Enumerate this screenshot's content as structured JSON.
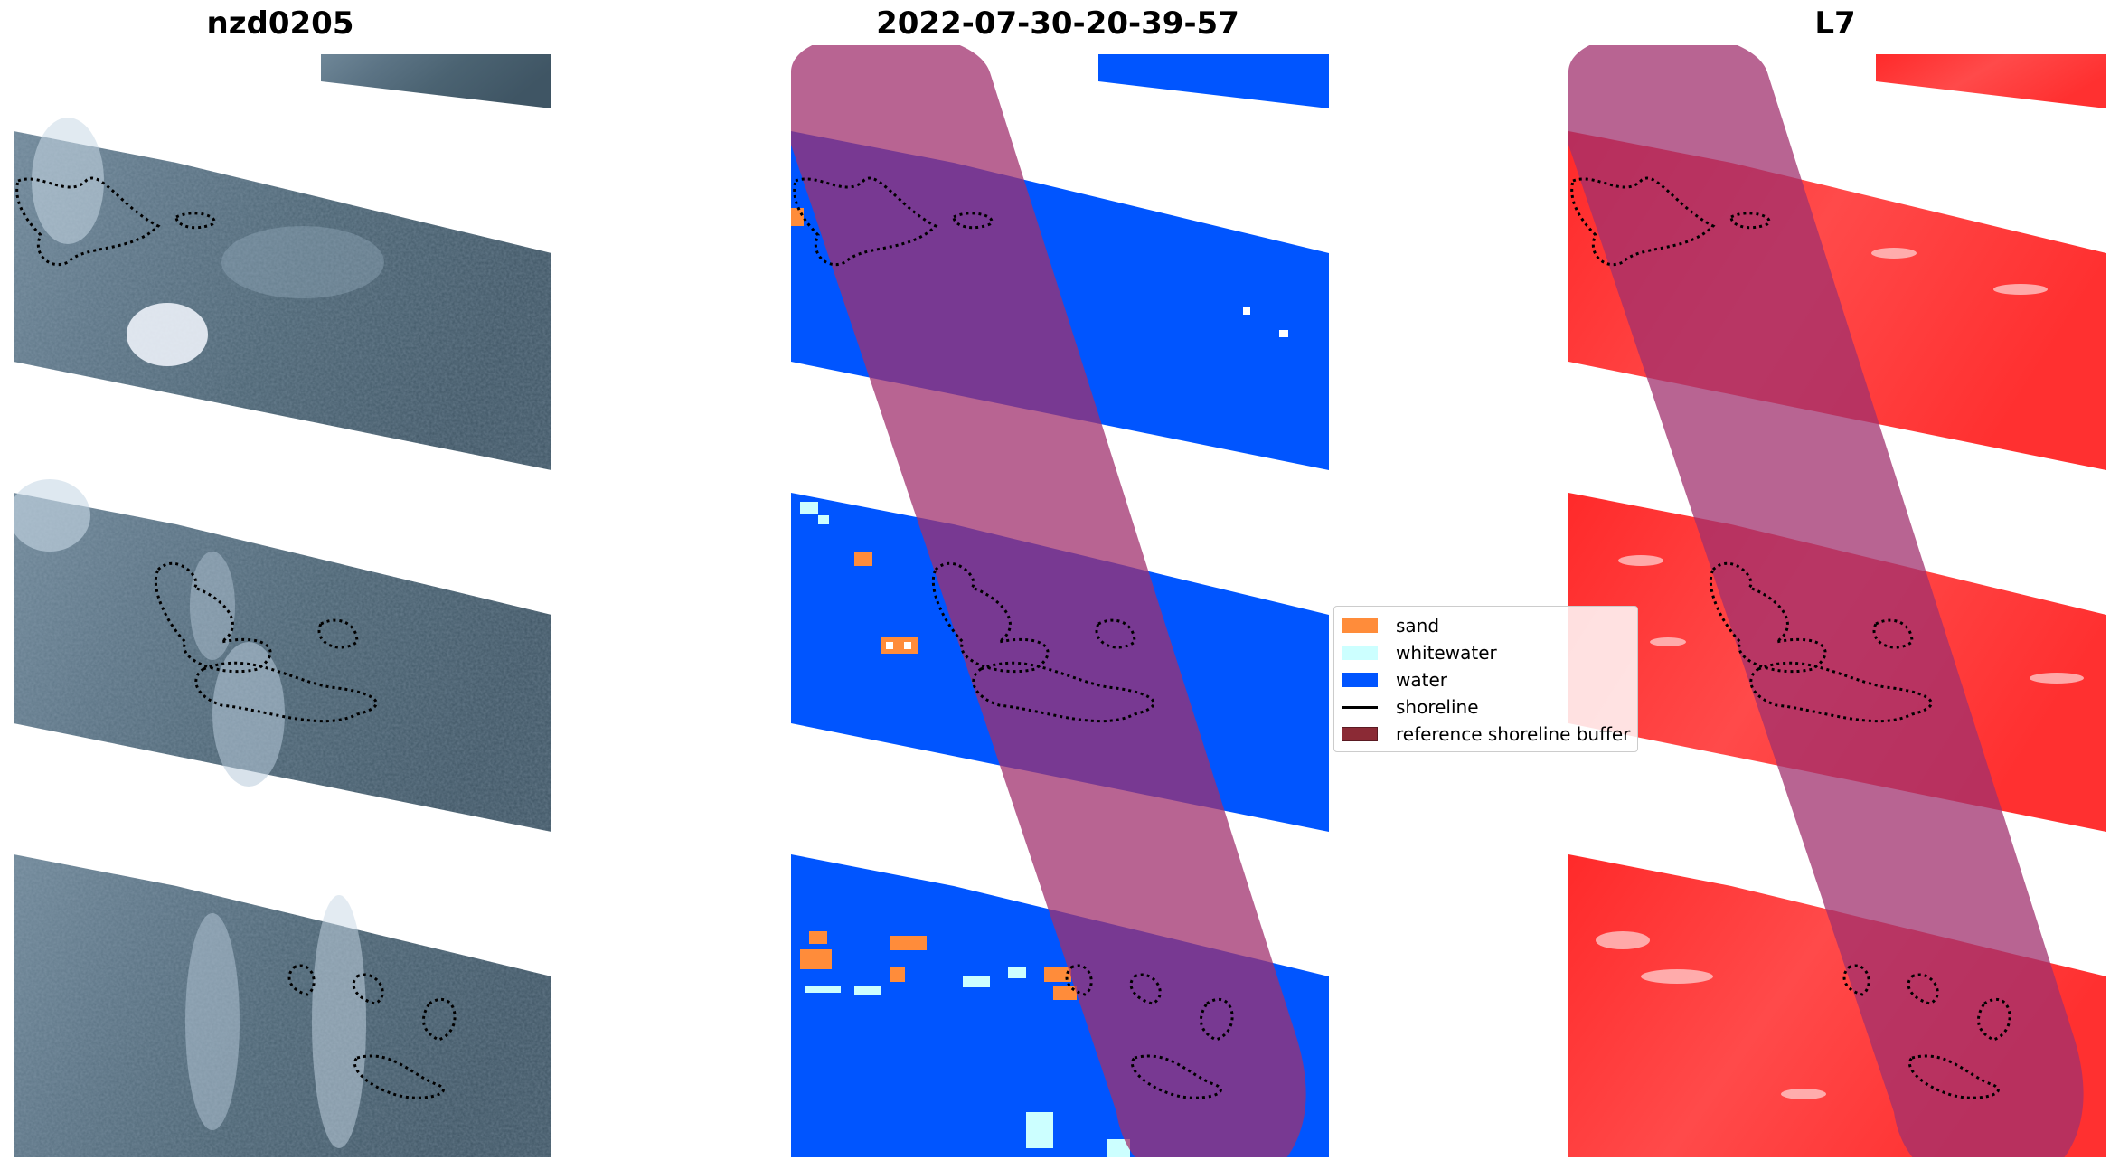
{
  "titles": {
    "left": "nzd0205",
    "middle": "2022-07-30-20-39-57",
    "right": "L7"
  },
  "legend": {
    "items": [
      {
        "label": "sand",
        "color": "#ff8c3a",
        "kind": "patch"
      },
      {
        "label": "whitewater",
        "color": "#ccffff",
        "kind": "patch"
      },
      {
        "label": "water",
        "color": "#0055ff",
        "kind": "patch"
      },
      {
        "label": "shoreline",
        "color": "#000000",
        "kind": "line"
      },
      {
        "label": "reference shoreline buffer",
        "color": "#8b2a35",
        "kind": "patch"
      }
    ]
  },
  "colors": {
    "rgb_imagery": "#4a6070",
    "water": "#0055ff",
    "sand": "#ff8c3a",
    "whitewater": "#ccffff",
    "buffer_overlay": "#a0306e",
    "mndwi": "#ff3030",
    "shoreline": "#000000"
  }
}
